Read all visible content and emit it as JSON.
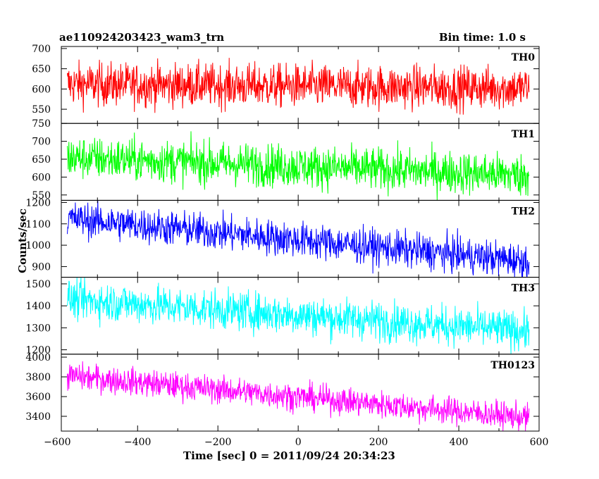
{
  "chart_data": {
    "type": "line",
    "title": "ae110924203423_wam3_trn",
    "bin_time_label": "Bin time: 1.0 s",
    "xlabel": "Time [sec] 0 = 2011/09/24 20:34:23",
    "ylabel": "Counts/sec",
    "xlim": [
      -590,
      600
    ],
    "x_ticks": [
      -600,
      -400,
      -200,
      0,
      200,
      400,
      600
    ],
    "x_tick_labels": [
      "−600",
      "−400",
      "−200",
      "0",
      "200",
      "400",
      "600"
    ],
    "data_x_range": [
      -575,
      575
    ],
    "panels": [
      {
        "name": "TH0",
        "color": "#ff0000",
        "ylim": [
          515,
          705
        ],
        "y_ticks": [
          550,
          600,
          650,
          700
        ],
        "y_tick_labels": [
          "550",
          "600",
          "650",
          "700"
        ],
        "trend_start": 612,
        "trend_end": 602,
        "noise": 27
      },
      {
        "name": "TH1",
        "color": "#00ff00",
        "ylim": [
          535,
          750
        ],
        "y_ticks": [
          550,
          600,
          650,
          700,
          750
        ],
        "y_tick_labels": [
          "550",
          "600",
          "650",
          "700",
          "750"
        ],
        "trend_start": 655,
        "trend_end": 605,
        "noise": 30
      },
      {
        "name": "TH2",
        "color": "#0000ff",
        "ylim": [
          850,
          1210
        ],
        "y_ticks": [
          900,
          1000,
          1100,
          1200
        ],
        "y_tick_labels": [
          "900",
          "1000",
          "1100",
          "1200"
        ],
        "trend_start": 1125,
        "trend_end": 925,
        "noise": 42
      },
      {
        "name": "TH3",
        "color": "#00ffff",
        "ylim": [
          1180,
          1530
        ],
        "y_ticks": [
          1200,
          1300,
          1400,
          1500
        ],
        "y_tick_labels": [
          "1200",
          "1300",
          "1400",
          "1500"
        ],
        "trend_start": 1430,
        "trend_end": 1285,
        "noise": 45
      },
      {
        "name": "TH0123",
        "color": "#ff00ff",
        "ylim": [
          3250,
          4030
        ],
        "y_ticks": [
          3400,
          3600,
          3800,
          4000
        ],
        "y_tick_labels": [
          "3400",
          "3600",
          "3800",
          "4000"
        ],
        "trend_start": 3810,
        "trend_end": 3385,
        "noise": 70
      }
    ]
  }
}
